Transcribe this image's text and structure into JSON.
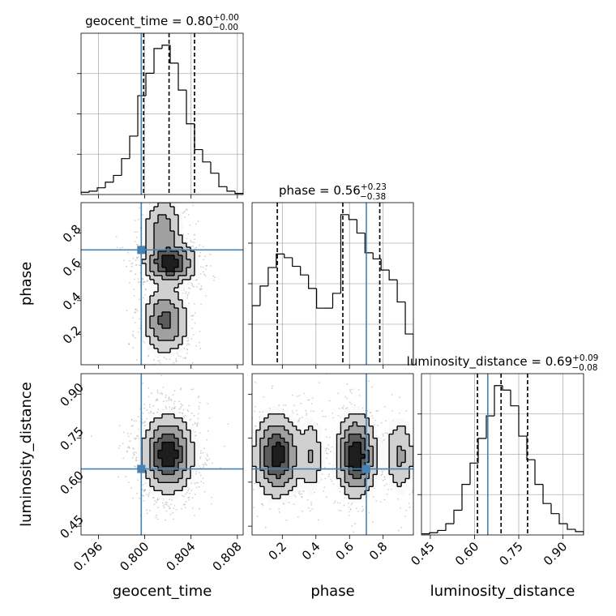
{
  "chart_data": {
    "type": "corner",
    "parameters": [
      "geocent_time",
      "phase",
      "luminosity_distance"
    ],
    "titles": [
      {
        "name": "geocent_time",
        "value": "0.80",
        "plus": "+0.00",
        "minus": "−0.00"
      },
      {
        "name": "phase",
        "value": "0.56",
        "plus": "+0.23",
        "minus": "−0.38"
      },
      {
        "name": "luminosity_distance",
        "value": "0.69",
        "plus": "+0.09",
        "minus": "−0.08"
      }
    ],
    "axes": {
      "geocent_time": {
        "range": [
          0.7945,
          0.8085
        ],
        "ticks": [
          0.796,
          0.8,
          0.804,
          0.808
        ],
        "tick_labels": [
          "0.796",
          "0.800",
          "0.804",
          "0.808"
        ]
      },
      "phase": {
        "range": [
          0.02,
          0.98
        ],
        "ticks": [
          0.2,
          0.4,
          0.6,
          0.8
        ],
        "tick_labels": [
          "0.2",
          "0.4",
          "0.6",
          "0.8"
        ]
      },
      "luminosity_distance": {
        "range": [
          0.42,
          0.97
        ],
        "ticks": [
          0.45,
          0.6,
          0.75,
          0.9
        ],
        "tick_labels": [
          "0.45",
          "0.60",
          "0.75",
          "0.90"
        ]
      }
    },
    "truths": {
      "geocent_time": 0.7997,
      "phase": 0.7,
      "luminosity_distance": 0.645
    },
    "quantiles": {
      "geocent_time": [
        0.7999,
        0.8021,
        0.8043
      ],
      "phase": [
        0.17,
        0.56,
        0.78
      ],
      "luminosity_distance": [
        0.61,
        0.69,
        0.78
      ]
    },
    "histograms": {
      "geocent_time": {
        "edges": [
          0.7945,
          0.7952,
          0.7959,
          0.7966,
          0.7973,
          0.798,
          0.7987,
          0.7994,
          0.8001,
          0.8008,
          0.8015,
          0.8022,
          0.8029,
          0.8036,
          0.8043,
          0.805,
          0.8057,
          0.8064,
          0.8071,
          0.8078,
          0.8085
        ],
        "counts": [
          2,
          3,
          6,
          11,
          17,
          32,
          52,
          88,
          108,
          130,
          133,
          117,
          93,
          63,
          40,
          29,
          19,
          7,
          3,
          1
        ]
      },
      "phase": {
        "edges": [
          0.02,
          0.068,
          0.116,
          0.164,
          0.212,
          0.26,
          0.308,
          0.356,
          0.404,
          0.452,
          0.5,
          0.548,
          0.596,
          0.644,
          0.692,
          0.74,
          0.788,
          0.836,
          0.884,
          0.932,
          0.98
        ],
        "counts": [
          48,
          64,
          79,
          90,
          87,
          80,
          73,
          62,
          46,
          46,
          58,
          122,
          118,
          107,
          91,
          86,
          77,
          69,
          51,
          25
        ]
      },
      "luminosity_distance": {
        "edges": [
          0.42,
          0.4475,
          0.475,
          0.5025,
          0.53,
          0.5575,
          0.585,
          0.6125,
          0.64,
          0.6675,
          0.695,
          0.7225,
          0.75,
          0.7775,
          0.805,
          0.8325,
          0.86,
          0.8875,
          0.915,
          0.9425,
          0.97
        ],
        "counts": [
          1,
          2,
          4,
          10,
          22,
          45,
          64,
          86,
          106,
          133,
          129,
          115,
          88,
          67,
          45,
          28,
          19,
          10,
          5,
          3
        ]
      }
    },
    "density_2d": [
      {
        "x": "geocent_time",
        "y": "phase",
        "components": [
          {
            "cx": 0.8016,
            "cy": 0.82,
            "sx": 0.0009,
            "sy": 0.1,
            "w": 0.2
          },
          {
            "cx": 0.8022,
            "cy": 0.62,
            "sx": 0.0011,
            "sy": 0.06,
            "w": 0.45
          },
          {
            "cx": 0.8018,
            "cy": 0.28,
            "sx": 0.001,
            "sy": 0.1,
            "w": 0.3
          }
        ]
      },
      {
        "x": "geocent_time",
        "y": "luminosity_distance",
        "components": [
          {
            "cx": 0.802,
            "cy": 0.695,
            "sx": 0.0011,
            "sy": 0.065,
            "w": 1.0
          }
        ]
      },
      {
        "x": "phase",
        "y": "luminosity_distance",
        "components": [
          {
            "cx": 0.17,
            "cy": 0.69,
            "sx": 0.07,
            "sy": 0.07,
            "w": 0.42
          },
          {
            "cx": 0.37,
            "cy": 0.69,
            "sx": 0.04,
            "sy": 0.07,
            "w": 0.13
          },
          {
            "cx": 0.64,
            "cy": 0.69,
            "sx": 0.06,
            "sy": 0.07,
            "w": 0.45
          },
          {
            "cx": 0.9,
            "cy": 0.69,
            "sx": 0.05,
            "sy": 0.07,
            "w": 0.15
          }
        ]
      }
    ],
    "colors": {
      "truth": "#4682b4",
      "line": "#000000",
      "grid": "#b0b0b0",
      "samples": "#a8a8a8"
    },
    "grid": true
  }
}
